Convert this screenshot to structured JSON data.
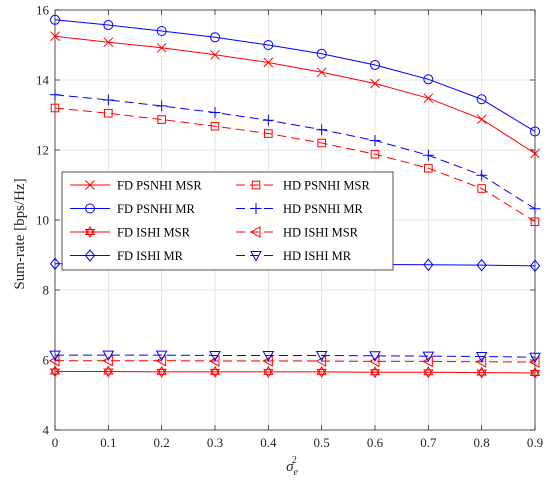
{
  "chart_data": {
    "type": "line",
    "title": "",
    "xlabel": "σ",
    "xlabel_sup": "2",
    "xlabel_sub": "e",
    "ylabel": "Sum-rate [bps/Hz]",
    "xlim": [
      0,
      0.9
    ],
    "ylim": [
      4,
      16
    ],
    "xticks": [
      0,
      0.1,
      0.2,
      0.3,
      0.4,
      0.5,
      0.6,
      0.7,
      0.8,
      0.9
    ],
    "xtick_labels": [
      "0",
      "0.1",
      "0.2",
      "0.3",
      "0.4",
      "0.5",
      "0.6",
      "0.7",
      "0.8",
      "0.9"
    ],
    "yticks": [
      4,
      6,
      8,
      10,
      12,
      14,
      16
    ],
    "ytick_labels": [
      "4",
      "6",
      "8",
      "10",
      "12",
      "14",
      "16"
    ],
    "grid": true,
    "legend_placement": "center-left",
    "x": [
      0,
      0.1,
      0.2,
      0.3,
      0.4,
      0.5,
      0.6,
      0.7,
      0.8,
      0.9
    ],
    "series": [
      {
        "name": "FD PSNHI MSR",
        "color": "#ff0000",
        "dash": "solid",
        "marker": "x",
        "values": [
          15.25,
          15.08,
          14.92,
          14.72,
          14.5,
          14.22,
          13.9,
          13.48,
          12.88,
          11.9
        ]
      },
      {
        "name": "HD PSNHI MSR",
        "color": "#ff0000",
        "dash": "dashed",
        "marker": "square",
        "values": [
          13.2,
          13.05,
          12.87,
          12.68,
          12.47,
          12.2,
          11.88,
          11.48,
          10.9,
          9.95
        ]
      },
      {
        "name": "FD PSNHI MR",
        "color": "#0000ff",
        "dash": "solid",
        "marker": "circle",
        "values": [
          15.72,
          15.57,
          15.4,
          15.22,
          15.0,
          14.75,
          14.43,
          14.02,
          13.45,
          12.53
        ]
      },
      {
        "name": "HD PSNHI MR",
        "color": "#0000ff",
        "dash": "dashed",
        "marker": "plus",
        "values": [
          13.58,
          13.43,
          13.26,
          13.07,
          12.85,
          12.58,
          12.27,
          11.85,
          11.28,
          10.32
        ]
      },
      {
        "name": "FD ISHI MSR",
        "color": "#ff0000",
        "dash": "solid",
        "marker": "hexagram",
        "values": [
          5.67,
          5.67,
          5.66,
          5.66,
          5.66,
          5.66,
          5.65,
          5.65,
          5.64,
          5.63
        ]
      },
      {
        "name": "HD ISHI MSR",
        "color": "#ff0000",
        "dash": "dashed",
        "marker": "triangle-left",
        "values": [
          5.98,
          5.98,
          5.98,
          5.97,
          5.97,
          5.97,
          5.96,
          5.96,
          5.95,
          5.94
        ]
      },
      {
        "name": "FD ISHI MR",
        "color": "#0000ff",
        "dash": "solid",
        "marker": "diamond",
        "values": [
          8.75,
          8.75,
          8.74,
          8.74,
          8.74,
          8.73,
          8.73,
          8.72,
          8.71,
          8.69
        ]
      },
      {
        "name": "HD ISHI MR",
        "color": "#0000ff",
        "dash": "dashed",
        "marker": "triangle-down",
        "values": [
          6.14,
          6.14,
          6.14,
          6.13,
          6.13,
          6.13,
          6.12,
          6.11,
          6.1,
          6.08
        ]
      }
    ]
  }
}
